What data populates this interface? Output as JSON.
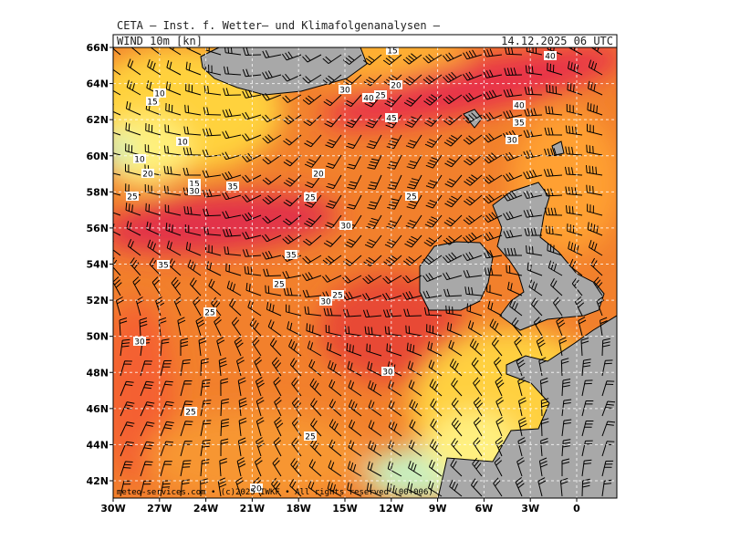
{
  "header": {
    "title": "CETA — Inst. f. Wetter— und Klimafolgenanalysen —",
    "parameter": "WIND 10m [kn]",
    "datetime": "14.12.2025 06 UTC"
  },
  "axes": {
    "longitudes": [
      "30W",
      "27W",
      "24W",
      "21W",
      "18W",
      "15W",
      "12W",
      "9W",
      "6W",
      "3W",
      "0"
    ],
    "latitudes": [
      "66N",
      "64N",
      "62N",
      "60N",
      "58N",
      "56N",
      "54N",
      "52N",
      "50N",
      "48N",
      "46N",
      "44N",
      "42N"
    ]
  },
  "contour_labels": [
    "15",
    "40",
    "10",
    "15",
    "30",
    "40",
    "25",
    "20",
    "40",
    "45",
    "35",
    "10",
    "30",
    "10",
    "20",
    "20",
    "15",
    "30",
    "35",
    "25",
    "25",
    "25",
    "30",
    "35",
    "35",
    "25",
    "25",
    "30",
    "25",
    "30",
    "30",
    "25",
    "25",
    "20"
  ],
  "footer": "meteo-services.com • (c)2025 IWKF • All rights reserved (00+006)"
}
